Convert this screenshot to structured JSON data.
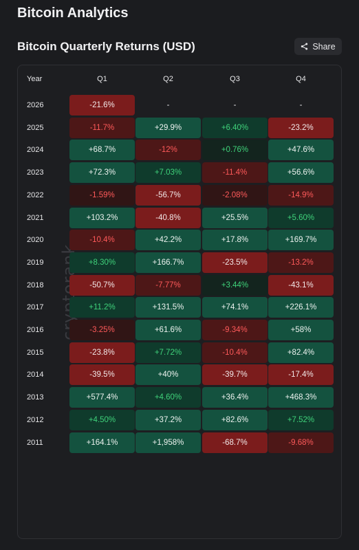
{
  "app": {
    "title": "Bitcoin Analytics"
  },
  "section": {
    "title": "Bitcoin Quarterly Returns (USD)",
    "share_label": "Share"
  },
  "watermark": "cryptorank",
  "table": {
    "year_header": "Year",
    "quarters": [
      "Q1",
      "Q2",
      "Q3",
      "Q4"
    ],
    "rows": [
      {
        "year": "2026",
        "cells": [
          {
            "v": "-21.6%",
            "s": "sr"
          },
          {
            "v": "-",
            "s": "nil"
          },
          {
            "v": "-",
            "s": "nil"
          },
          {
            "v": "-",
            "s": "nil"
          }
        ]
      },
      {
        "year": "2025",
        "cells": [
          {
            "v": "-11.7%",
            "s": "mr"
          },
          {
            "v": "+29.9%",
            "s": "sg"
          },
          {
            "v": "+6.40%",
            "s": "mg"
          },
          {
            "v": "-23.2%",
            "s": "sr"
          }
        ]
      },
      {
        "year": "2024",
        "cells": [
          {
            "v": "+68.7%",
            "s": "sg"
          },
          {
            "v": "-12%",
            "s": "mr"
          },
          {
            "v": "+0.76%",
            "s": "wg"
          },
          {
            "v": "+47.6%",
            "s": "sg"
          }
        ]
      },
      {
        "year": "2023",
        "cells": [
          {
            "v": "+72.3%",
            "s": "sg"
          },
          {
            "v": "+7.03%",
            "s": "mg"
          },
          {
            "v": "-11.4%",
            "s": "mr"
          },
          {
            "v": "+56.6%",
            "s": "sg"
          }
        ]
      },
      {
        "year": "2022",
        "cells": [
          {
            "v": "-1.59%",
            "s": "wr"
          },
          {
            "v": "-56.7%",
            "s": "sr"
          },
          {
            "v": "-2.08%",
            "s": "wr"
          },
          {
            "v": "-14.9%",
            "s": "mr"
          }
        ]
      },
      {
        "year": "2021",
        "cells": [
          {
            "v": "+103.2%",
            "s": "sg"
          },
          {
            "v": "-40.8%",
            "s": "sr"
          },
          {
            "v": "+25.5%",
            "s": "sg"
          },
          {
            "v": "+5.60%",
            "s": "mg"
          }
        ]
      },
      {
        "year": "2020",
        "cells": [
          {
            "v": "-10.4%",
            "s": "mr"
          },
          {
            "v": "+42.2%",
            "s": "sg"
          },
          {
            "v": "+17.8%",
            "s": "sg"
          },
          {
            "v": "+169.7%",
            "s": "sg"
          }
        ]
      },
      {
        "year": "2019",
        "cells": [
          {
            "v": "+8.30%",
            "s": "mg"
          },
          {
            "v": "+166.7%",
            "s": "sg"
          },
          {
            "v": "-23.5%",
            "s": "sr"
          },
          {
            "v": "-13.2%",
            "s": "mr"
          }
        ]
      },
      {
        "year": "2018",
        "cells": [
          {
            "v": "-50.7%",
            "s": "sr"
          },
          {
            "v": "-7.77%",
            "s": "mr"
          },
          {
            "v": "+3.44%",
            "s": "wg"
          },
          {
            "v": "-43.1%",
            "s": "sr"
          }
        ]
      },
      {
        "year": "2017",
        "cells": [
          {
            "v": "+11.2%",
            "s": "mg"
          },
          {
            "v": "+131.5%",
            "s": "sg"
          },
          {
            "v": "+74.1%",
            "s": "sg"
          },
          {
            "v": "+226.1%",
            "s": "sg"
          }
        ]
      },
      {
        "year": "2016",
        "cells": [
          {
            "v": "-3.25%",
            "s": "wr"
          },
          {
            "v": "+61.6%",
            "s": "sg"
          },
          {
            "v": "-9.34%",
            "s": "mr"
          },
          {
            "v": "+58%",
            "s": "sg"
          }
        ]
      },
      {
        "year": "2015",
        "cells": [
          {
            "v": "-23.8%",
            "s": "sr"
          },
          {
            "v": "+7.72%",
            "s": "mg"
          },
          {
            "v": "-10.4%",
            "s": "mr"
          },
          {
            "v": "+82.4%",
            "s": "sg"
          }
        ]
      },
      {
        "year": "2014",
        "cells": [
          {
            "v": "-39.5%",
            "s": "sr"
          },
          {
            "v": "+40%",
            "s": "sg"
          },
          {
            "v": "-39.7%",
            "s": "sr"
          },
          {
            "v": "-17.4%",
            "s": "sr"
          }
        ]
      },
      {
        "year": "2013",
        "cells": [
          {
            "v": "+577.4%",
            "s": "sg"
          },
          {
            "v": "+4.60%",
            "s": "mg"
          },
          {
            "v": "+36.4%",
            "s": "sg"
          },
          {
            "v": "+468.3%",
            "s": "sg"
          }
        ]
      },
      {
        "year": "2012",
        "cells": [
          {
            "v": "+4.50%",
            "s": "mg"
          },
          {
            "v": "+37.2%",
            "s": "sg"
          },
          {
            "v": "+82.6%",
            "s": "sg"
          },
          {
            "v": "+7.52%",
            "s": "mg"
          }
        ]
      },
      {
        "year": "2011",
        "cells": [
          {
            "v": "+164.1%",
            "s": "sg"
          },
          {
            "v": "+1,958%",
            "s": "sg"
          },
          {
            "v": "-68.7%",
            "s": "sr"
          },
          {
            "v": "-9.68%",
            "s": "mr"
          }
        ]
      }
    ]
  },
  "colors": {
    "background": "#1b1c1f",
    "positive_strong": "#14523f",
    "negative_strong": "#7b1c1c",
    "positive_text": "#3fd27a",
    "negative_text": "#ff5a5a"
  },
  "icons": {
    "share": "share-icon"
  }
}
